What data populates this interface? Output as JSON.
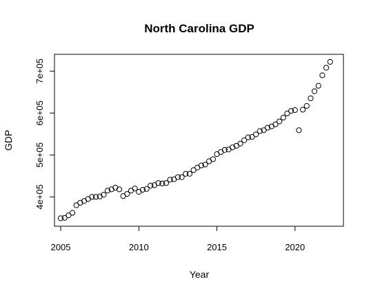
{
  "chart_data": {
    "type": "scatter",
    "title": "North Carolina GDP",
    "xlabel": "Year",
    "ylabel": "GDP",
    "xlim": [
      2004.6,
      2023.1
    ],
    "ylim": [
      330000,
      740000
    ],
    "x_ticks": [
      2005,
      2010,
      2015,
      2020
    ],
    "x_tick_labels": [
      "2005",
      "2010",
      "2015",
      "2020"
    ],
    "y_ticks": [
      400000,
      500000,
      600000,
      700000
    ],
    "y_tick_labels": [
      "4e+05",
      "5e+05",
      "6e+05",
      "7e+05"
    ],
    "grid": false,
    "legend": "none",
    "marker": "open-circle",
    "series": [
      {
        "x": [
          2005.0,
          2005.25,
          2005.5,
          2005.75,
          2006.0,
          2006.25,
          2006.5,
          2006.75,
          2007.0,
          2007.25,
          2007.5,
          2007.75,
          2008.0,
          2008.25,
          2008.5,
          2008.75,
          2009.0,
          2009.25,
          2009.5,
          2009.75,
          2010.0,
          2010.25,
          2010.5,
          2010.75,
          2011.0,
          2011.25,
          2011.5,
          2011.75,
          2012.0,
          2012.25,
          2012.5,
          2012.75,
          2013.0,
          2013.25,
          2013.5,
          2013.75,
          2014.0,
          2014.25,
          2014.5,
          2014.75,
          2015.0,
          2015.25,
          2015.5,
          2015.75,
          2016.0,
          2016.25,
          2016.5,
          2016.75,
          2017.0,
          2017.25,
          2017.5,
          2017.75,
          2018.0,
          2018.25,
          2018.5,
          2018.75,
          2019.0,
          2019.25,
          2019.5,
          2019.75,
          2020.0,
          2020.25,
          2020.5,
          2020.75,
          2021.0,
          2021.25,
          2021.5,
          2021.75,
          2022.0,
          2022.25
        ],
        "y": [
          349000,
          350000,
          356000,
          362000,
          380000,
          386000,
          390000,
          395000,
          400000,
          400000,
          401000,
          405000,
          415000,
          418000,
          422000,
          418000,
          402000,
          407000,
          415000,
          420000,
          412000,
          417000,
          419000,
          427000,
          428000,
          433000,
          432000,
          433000,
          441000,
          442000,
          447000,
          447000,
          455000,
          455000,
          464000,
          470000,
          475000,
          477000,
          485000,
          490000,
          502000,
          507000,
          512000,
          513000,
          518000,
          522000,
          527000,
          535000,
          542000,
          543000,
          549000,
          557000,
          559000,
          565000,
          568000,
          573000,
          580000,
          589000,
          599000,
          605000,
          607000,
          559000,
          608000,
          617000,
          635000,
          652000,
          665000,
          690000,
          708000,
          722000
        ]
      }
    ]
  }
}
